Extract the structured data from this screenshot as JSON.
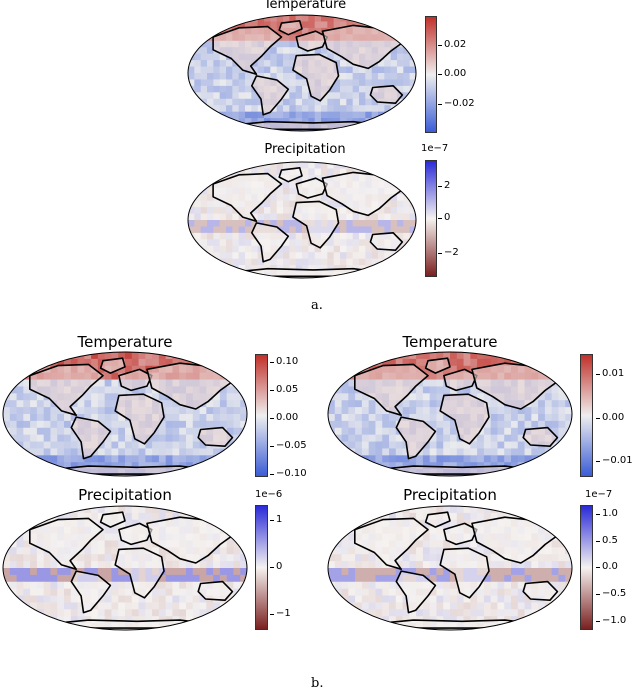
{
  "captions": {
    "a": "a.",
    "b": "b."
  },
  "colors": {
    "temp_pos": "#c0302a",
    "temp_mid": "#eeeeee",
    "temp_neg": "#3a5cd6",
    "precip_pos": "#2a2ad8",
    "precip_mid": "#f5f2f0",
    "precip_neg": "#7a2020",
    "land_outline": "#000000"
  },
  "chart_data": [
    {
      "type": "heatmap",
      "id": "a-temperature",
      "title": "Temperature",
      "colormap": "coolwarm",
      "projection": "Robinson (global)",
      "colorbar": {
        "ticks": [
          "0.02",
          "0.00",
          "−0.02"
        ],
        "tick_values": [
          0.02,
          0.0,
          -0.02
        ],
        "range": [
          -0.035,
          0.035
        ],
        "exponent": ""
      }
    },
    {
      "type": "heatmap",
      "id": "a-precipitation",
      "title": "Precipitation",
      "colormap": "reversed red-white-blue",
      "projection": "Robinson (global)",
      "colorbar": {
        "ticks": [
          "2",
          "0",
          "−2"
        ],
        "tick_values": [
          2,
          0,
          -2
        ],
        "range": [
          -3.5,
          3.5
        ],
        "exponent": "1e−7"
      }
    },
    {
      "type": "heatmap",
      "id": "b-temperature-left",
      "title": "Temperature",
      "colormap": "coolwarm",
      "projection": "Robinson (global)",
      "colorbar": {
        "ticks": [
          "0.10",
          "0.05",
          "0.00",
          "−0.05",
          "−0.10"
        ],
        "tick_values": [
          0.1,
          0.05,
          0.0,
          -0.05,
          -0.1
        ],
        "range": [
          -0.12,
          0.12
        ],
        "exponent": ""
      }
    },
    {
      "type": "heatmap",
      "id": "b-temperature-right",
      "title": "Temperature",
      "colormap": "coolwarm",
      "projection": "Robinson (global)",
      "colorbar": {
        "ticks": [
          "0.01",
          "0.00",
          "−0.01"
        ],
        "tick_values": [
          0.01,
          0.0,
          -0.01
        ],
        "range": [
          -0.016,
          0.016
        ],
        "exponent": ""
      }
    },
    {
      "type": "heatmap",
      "id": "b-precipitation-left",
      "title": "Precipitation",
      "colormap": "reversed red-white-blue",
      "projection": "Robinson (global)",
      "colorbar": {
        "ticks": [
          "1",
          "0",
          "−1"
        ],
        "tick_values": [
          1,
          0,
          -1
        ],
        "range": [
          -1.3,
          1.3
        ],
        "exponent": "1e−6"
      }
    },
    {
      "type": "heatmap",
      "id": "b-precipitation-right",
      "title": "Precipitation",
      "colormap": "reversed red-white-blue",
      "projection": "Robinson (global)",
      "colorbar": {
        "ticks": [
          "1.0",
          "0.5",
          "0.0",
          "−0.5",
          "−1.0"
        ],
        "tick_values": [
          1.0,
          0.5,
          0.0,
          -0.5,
          -1.0
        ],
        "range": [
          -1.15,
          1.15
        ],
        "exponent": "1e−7"
      }
    }
  ]
}
